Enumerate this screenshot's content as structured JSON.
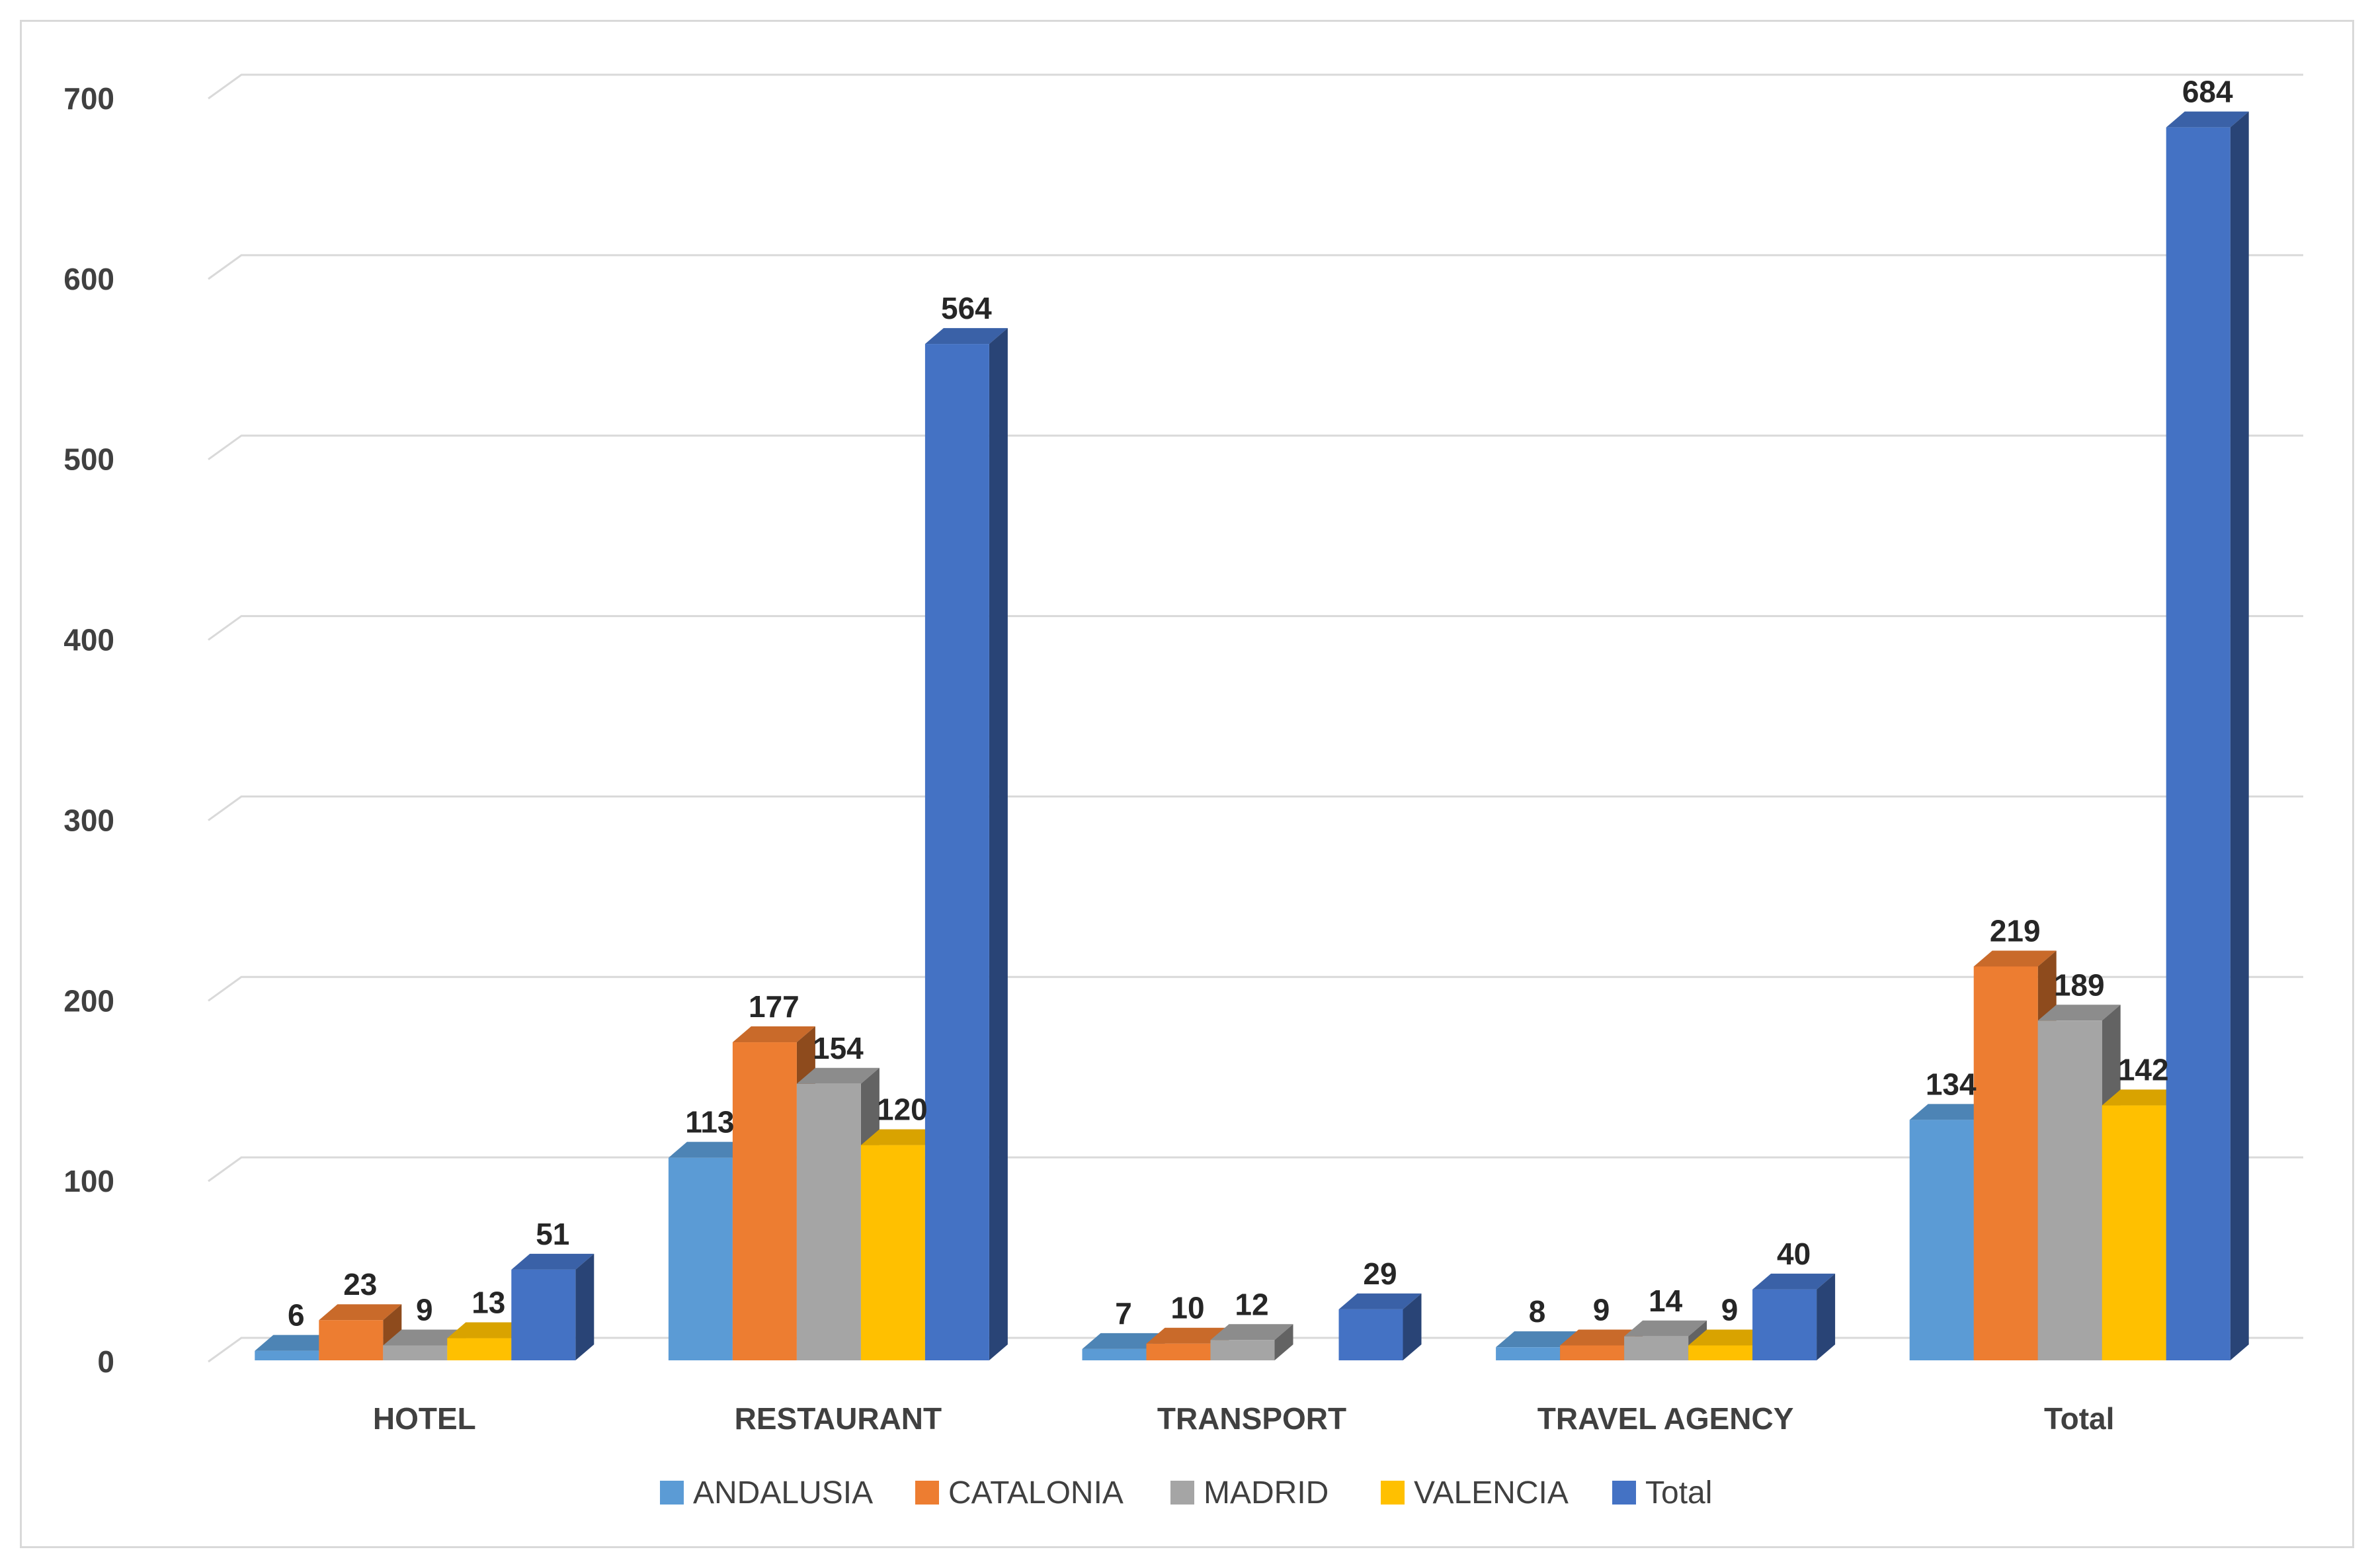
{
  "chart_data": {
    "type": "bar",
    "title": "",
    "xlabel": "",
    "ylabel": "",
    "ylim": [
      0,
      700
    ],
    "yticks": [
      0,
      100,
      200,
      300,
      400,
      500,
      600,
      700
    ],
    "grid": true,
    "legend_position": "bottom",
    "categories": [
      "HOTEL",
      "RESTAURANT",
      "TRANSPORT",
      "TRAVEL AGENCY",
      "Total"
    ],
    "series": [
      {
        "name": "ANDALUSIA",
        "color": "#5b9bd5",
        "values": [
          6,
          113,
          7,
          8,
          134
        ]
      },
      {
        "name": "CATALONIA",
        "color": "#ed7d31",
        "values": [
          23,
          177,
          10,
          9,
          219
        ]
      },
      {
        "name": "MADRID",
        "color": "#a5a5a5",
        "values": [
          9,
          154,
          12,
          14,
          189
        ]
      },
      {
        "name": "VALENCIA",
        "color": "#ffc000",
        "values": [
          13,
          120,
          null,
          9,
          142
        ]
      },
      {
        "name": "Total",
        "color": "#4472c4",
        "values": [
          51,
          564,
          29,
          40,
          684
        ]
      }
    ]
  }
}
